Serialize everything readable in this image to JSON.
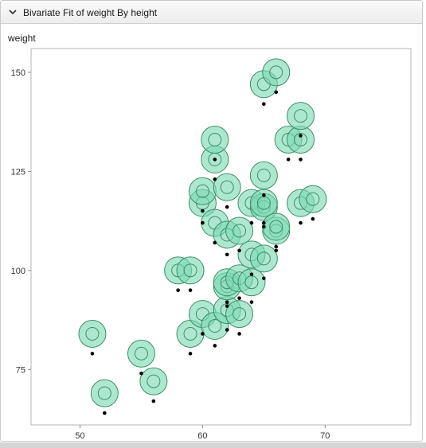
{
  "window": {
    "title": "Bivariate Fit of weight By height"
  },
  "chart_data": {
    "type": "scatter",
    "title": "Bivariate Fit of weight By height",
    "xlabel": "",
    "ylabel": "weight",
    "xlim": [
      46,
      77
    ],
    "ylim": [
      61,
      156
    ],
    "xticks": [
      50,
      60,
      70
    ],
    "yticks": [
      75,
      100,
      125,
      150
    ],
    "grid": false,
    "marker_color": "#7dd9b3",
    "marker_edge": "#3a8f6a",
    "point_color": "#000000",
    "points": [
      {
        "x": 51,
        "y": 79
      },
      {
        "x": 52,
        "y": 64
      },
      {
        "x": 55,
        "y": 74
      },
      {
        "x": 56,
        "y": 67
      },
      {
        "x": 58,
        "y": 95
      },
      {
        "x": 59,
        "y": 95
      },
      {
        "x": 59,
        "y": 79
      },
      {
        "x": 60,
        "y": 84
      },
      {
        "x": 60,
        "y": 112
      },
      {
        "x": 60,
        "y": 115
      },
      {
        "x": 61,
        "y": 81
      },
      {
        "x": 61,
        "y": 107
      },
      {
        "x": 61,
        "y": 123
      },
      {
        "x": 61,
        "y": 128
      },
      {
        "x": 62,
        "y": 85
      },
      {
        "x": 62,
        "y": 91
      },
      {
        "x": 62,
        "y": 92
      },
      {
        "x": 62,
        "y": 104
      },
      {
        "x": 62,
        "y": 116
      },
      {
        "x": 63,
        "y": 84
      },
      {
        "x": 63,
        "y": 93
      },
      {
        "x": 63,
        "y": 105
      },
      {
        "x": 64,
        "y": 92
      },
      {
        "x": 64,
        "y": 99
      },
      {
        "x": 64,
        "y": 112
      },
      {
        "x": 65,
        "y": 98
      },
      {
        "x": 65,
        "y": 111
      },
      {
        "x": 65,
        "y": 112
      },
      {
        "x": 65,
        "y": 119
      },
      {
        "x": 65,
        "y": 142
      },
      {
        "x": 66,
        "y": 105
      },
      {
        "x": 66,
        "y": 106
      },
      {
        "x": 66,
        "y": 145
      },
      {
        "x": 67,
        "y": 128
      },
      {
        "x": 68,
        "y": 112
      },
      {
        "x": 68,
        "y": 128
      },
      {
        "x": 68,
        "y": 134
      },
      {
        "x": 69,
        "y": 113
      }
    ],
    "bubbles": [
      {
        "x": 51,
        "y": 84
      },
      {
        "x": 52,
        "y": 69
      },
      {
        "x": 55,
        "y": 79
      },
      {
        "x": 56,
        "y": 72
      },
      {
        "x": 58,
        "y": 100
      },
      {
        "x": 59,
        "y": 100
      },
      {
        "x": 59,
        "y": 84
      },
      {
        "x": 60,
        "y": 89
      },
      {
        "x": 60,
        "y": 117
      },
      {
        "x": 60,
        "y": 120
      },
      {
        "x": 61,
        "y": 86
      },
      {
        "x": 61,
        "y": 112
      },
      {
        "x": 61,
        "y": 128
      },
      {
        "x": 61,
        "y": 133
      },
      {
        "x": 62,
        "y": 90
      },
      {
        "x": 62,
        "y": 96
      },
      {
        "x": 62,
        "y": 97
      },
      {
        "x": 62,
        "y": 109
      },
      {
        "x": 62,
        "y": 121
      },
      {
        "x": 63,
        "y": 89
      },
      {
        "x": 63,
        "y": 98
      },
      {
        "x": 63,
        "y": 110
      },
      {
        "x": 64,
        "y": 97
      },
      {
        "x": 64,
        "y": 104
      },
      {
        "x": 64,
        "y": 117
      },
      {
        "x": 65,
        "y": 103
      },
      {
        "x": 65,
        "y": 116
      },
      {
        "x": 65,
        "y": 117
      },
      {
        "x": 65,
        "y": 124
      },
      {
        "x": 65,
        "y": 147
      },
      {
        "x": 66,
        "y": 110
      },
      {
        "x": 66,
        "y": 111
      },
      {
        "x": 66,
        "y": 150
      },
      {
        "x": 67,
        "y": 133
      },
      {
        "x": 68,
        "y": 117
      },
      {
        "x": 68,
        "y": 133
      },
      {
        "x": 68,
        "y": 139
      },
      {
        "x": 69,
        "y": 118
      }
    ]
  }
}
